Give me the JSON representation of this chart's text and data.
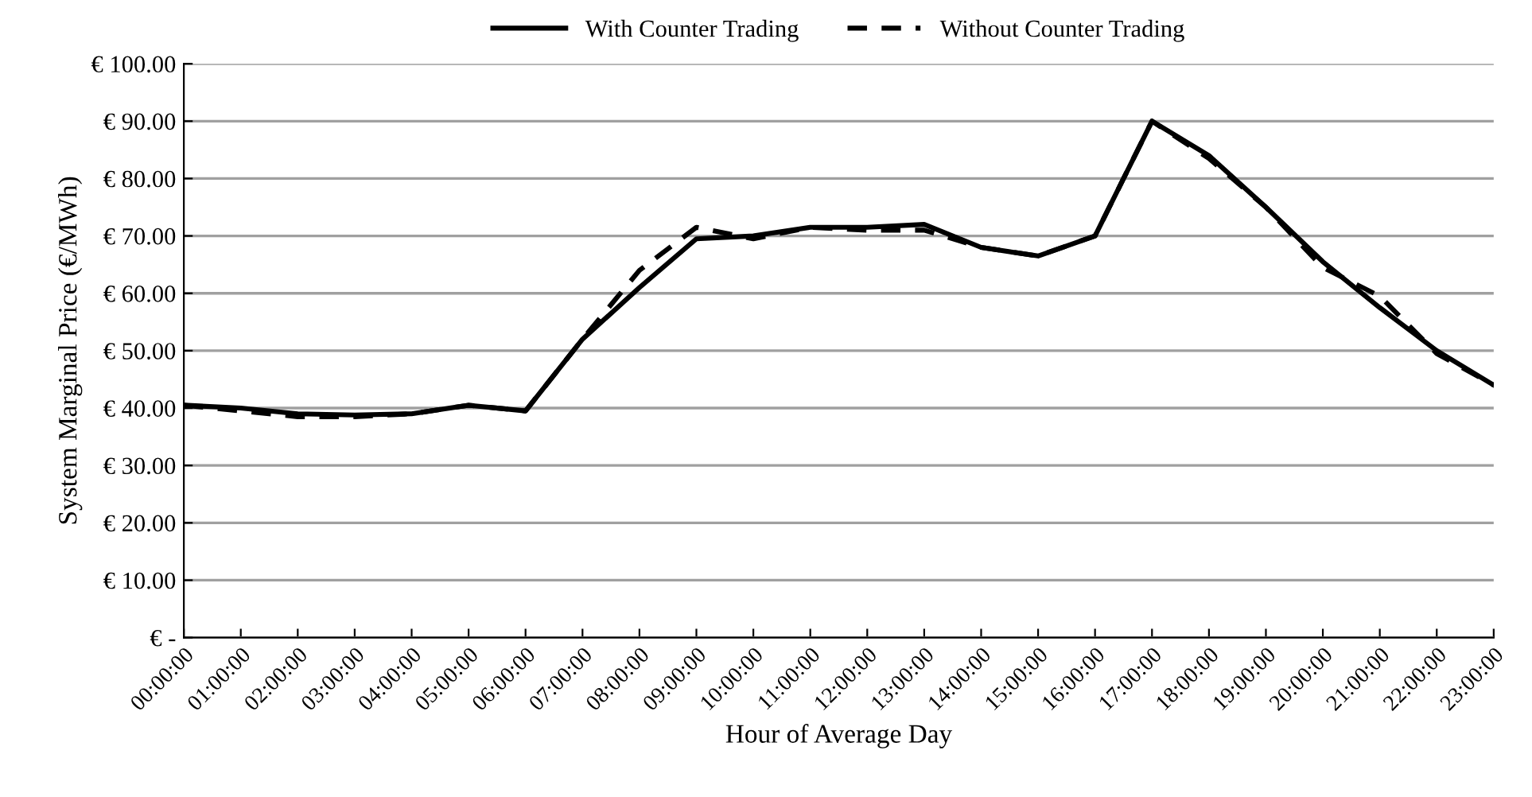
{
  "chart_data": {
    "type": "line",
    "xlabel": "Hour of Average Day",
    "ylabel": "System Marginal Price (€/MWh)",
    "categories": [
      "00:00:00",
      "01:00:00",
      "02:00:00",
      "03:00:00",
      "04:00:00",
      "05:00:00",
      "06:00:00",
      "07:00:00",
      "08:00:00",
      "09:00:00",
      "10:00:00",
      "11:00:00",
      "12:00:00",
      "13:00:00",
      "14:00:00",
      "15:00:00",
      "16:00:00",
      "17:00:00",
      "18:00:00",
      "19:00:00",
      "20:00:00",
      "21:00:00",
      "22:00:00",
      "23:00:00"
    ],
    "series": [
      {
        "name": "With Counter Trading",
        "color": "#000000",
        "line_style": "solid",
        "values": [
          40.5,
          40,
          39,
          38.8,
          39,
          40.5,
          39.5,
          52,
          61,
          69.5,
          70,
          71.5,
          71.5,
          72,
          68,
          66.5,
          70,
          90,
          84,
          75,
          65.5,
          57.5,
          50,
          44
        ]
      },
      {
        "name": "Without Counter Trading",
        "color": "#000000",
        "line_style": "dashed",
        "values": [
          40.5,
          39.5,
          38.5,
          38.5,
          39,
          40.5,
          39.5,
          52,
          64,
          71.5,
          69.5,
          71.5,
          71,
          71,
          68,
          66.5,
          70,
          90,
          83.5,
          75,
          64.5,
          59.5,
          49.5,
          44
        ]
      }
    ],
    "ylim": [
      0,
      100
    ],
    "yticks": [
      {
        "value": 0,
        "label": "€ -"
      },
      {
        "value": 10,
        "label": "€ 10.00"
      },
      {
        "value": 20,
        "label": "€ 20.00"
      },
      {
        "value": 30,
        "label": "€ 30.00"
      },
      {
        "value": 40,
        "label": "€ 40.00"
      },
      {
        "value": 50,
        "label": "€ 50.00"
      },
      {
        "value": 60,
        "label": "€ 60.00"
      },
      {
        "value": 70,
        "label": "€ 70.00"
      },
      {
        "value": 80,
        "label": "€ 80.00"
      },
      {
        "value": 90,
        "label": "€ 90.00"
      },
      {
        "value": 100,
        "label": "€ 100.00"
      }
    ],
    "grid": "y",
    "legend": "top",
    "marker": "none"
  }
}
